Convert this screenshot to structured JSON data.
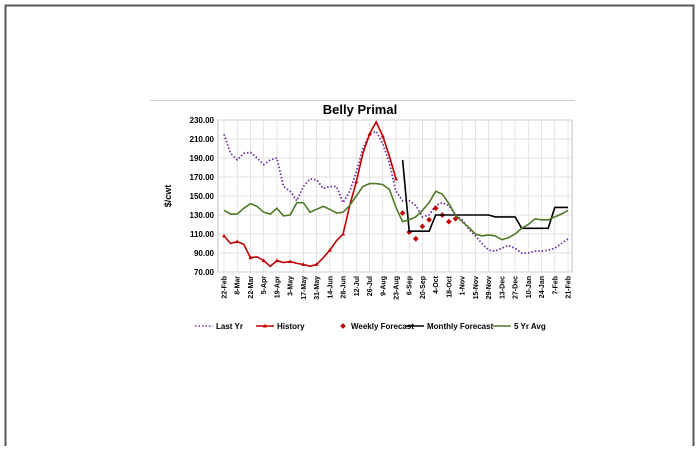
{
  "chart_data": {
    "type": "line",
    "title": "Belly Primal",
    "y_label": "$/cwt",
    "grid": true,
    "legend": "bottom",
    "categories": [
      "22-Feb",
      null,
      "8-Mar",
      null,
      "22-Mar",
      null,
      "5-Apr",
      null,
      "19-Apr",
      null,
      "3-May",
      null,
      "17-May",
      null,
      "31-May",
      null,
      "14-Jun",
      null,
      "28-Jun",
      null,
      "12-Jul",
      null,
      "26-Jul",
      null,
      "9-Aug",
      null,
      "23-Aug",
      null,
      "6-Sep",
      null,
      "20-Sep",
      null,
      "4-Oct",
      null,
      "18-Oct",
      null,
      "1-Nov",
      null,
      "15-Nov",
      null,
      "29-Nov",
      null,
      "13-Dec",
      null,
      "27-Dec",
      null,
      "10-Jan",
      null,
      "24-Jan",
      null,
      "7-Feb",
      null,
      "21-Feb"
    ],
    "ylim": [
      70,
      230
    ],
    "yticks": [
      {
        "value": 70,
        "label": "70.00"
      },
      {
        "value": 90,
        "label": "90.00"
      },
      {
        "value": 110,
        "label": "110.00"
      },
      {
        "value": 130,
        "label": "130.00"
      },
      {
        "value": 150,
        "label": "150.00"
      },
      {
        "value": 170,
        "label": "170.00"
      },
      {
        "value": 190,
        "label": "190.00"
      },
      {
        "value": 210,
        "label": "210.00"
      },
      {
        "value": 230,
        "label": "230.00"
      }
    ],
    "series": [
      {
        "name": "Last Yr",
        "color": "#7030a0",
        "dash": "dotted",
        "values": [
          215,
          195,
          188,
          195,
          196,
          190,
          183,
          188,
          190,
          160,
          155,
          145,
          160,
          168,
          167,
          158,
          160,
          160,
          143,
          155,
          175,
          200,
          215,
          218,
          205,
          185,
          155,
          145,
          145,
          140,
          128,
          130,
          140,
          143,
          140,
          130,
          125,
          115,
          108,
          100,
          93,
          92,
          95,
          98,
          95,
          90,
          90,
          92,
          92,
          93,
          95,
          100,
          105
        ]
      },
      {
        "name": "History",
        "color": "#c00000",
        "marker": "triangle",
        "values": [
          108,
          100,
          102,
          99,
          85,
          86,
          82,
          76,
          82,
          80,
          81,
          79,
          78,
          76,
          78,
          85,
          93,
          103,
          110,
          140,
          165,
          195,
          215,
          228,
          213,
          192,
          168,
          null,
          null,
          null,
          null,
          null,
          null,
          null,
          null,
          null,
          null,
          null,
          null,
          null,
          null,
          null,
          null,
          null,
          null,
          null,
          null,
          null,
          null,
          null,
          null,
          null,
          null
        ]
      },
      {
        "name": "Weekly Forecast",
        "color": "#c00000",
        "kind": "scatter",
        "marker": "diamond",
        "values": [
          null,
          null,
          null,
          null,
          null,
          null,
          null,
          null,
          null,
          null,
          null,
          null,
          null,
          null,
          null,
          null,
          null,
          null,
          null,
          null,
          null,
          null,
          null,
          null,
          null,
          null,
          null,
          132,
          112,
          105,
          118,
          125,
          137,
          130,
          123,
          126,
          null,
          null,
          null,
          null,
          null,
          null,
          null,
          null,
          null,
          null,
          null,
          null,
          null,
          null,
          null,
          null,
          null
        ]
      },
      {
        "name": "Monthly Forecast",
        "color": "#000000",
        "values": [
          null,
          null,
          null,
          null,
          null,
          null,
          null,
          null,
          null,
          null,
          null,
          null,
          null,
          null,
          null,
          null,
          null,
          null,
          null,
          null,
          null,
          null,
          null,
          null,
          null,
          null,
          null,
          188,
          113,
          113,
          113,
          113,
          130,
          130,
          130,
          130,
          130,
          130,
          130,
          130,
          130,
          128,
          128,
          128,
          128,
          116,
          116,
          116,
          116,
          116,
          138,
          138,
          138
        ]
      },
      {
        "name": "5 Yr Avg",
        "color": "#4f7a28",
        "values": [
          135,
          131,
          131,
          137,
          142,
          139,
          133,
          131,
          137,
          129,
          130,
          143,
          143,
          133,
          136,
          139,
          136,
          132,
          133,
          140,
          150,
          160,
          163,
          163,
          162,
          157,
          138,
          123,
          125,
          128,
          135,
          143,
          155,
          152,
          142,
          130,
          123,
          117,
          110,
          108,
          109,
          108,
          104,
          106,
          110,
          116,
          120,
          126,
          125,
          125,
          128,
          131,
          135
        ]
      }
    ]
  }
}
